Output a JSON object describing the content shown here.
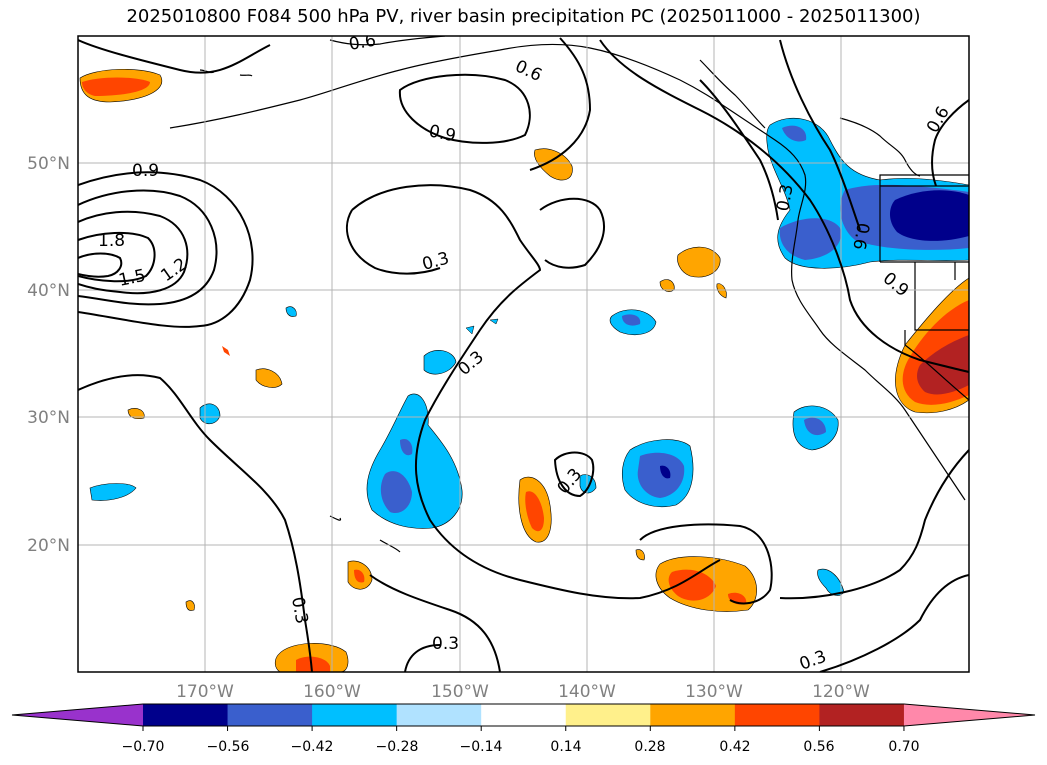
{
  "title": "2025010800 F084 500 hPa PV, river basin precipitation PC (2025011000 - 2025011300)",
  "map": {
    "lat_ticks": [
      "50°N",
      "40°N",
      "30°N",
      "20°N"
    ],
    "lon_ticks": [
      "170°W",
      "160°W",
      "150°W",
      "140°W",
      "130°W",
      "120°W"
    ],
    "lat_values": [
      50,
      40,
      30,
      20
    ],
    "lon_values": [
      -170,
      -160,
      -150,
      -140,
      -130,
      -120
    ],
    "lon_range": [
      -180,
      -110
    ],
    "lat_range": [
      10,
      60
    ],
    "grid": true,
    "contour_labels": [
      "0.6",
      "0.6",
      "0.9",
      "0.9",
      "1.8",
      "1.5",
      "1.2",
      "0.3",
      "0.3",
      "0.3",
      "0.3",
      "0.3",
      "0.3",
      "0.6",
      "0.9",
      "0.6",
      "0.3"
    ]
  },
  "colorbar": {
    "extend": "both",
    "labels": [
      "−0.70",
      "−0.56",
      "−0.42",
      "−0.28",
      "−0.14",
      "0.14",
      "0.28",
      "0.42",
      "0.56",
      "0.70"
    ],
    "colors": [
      "#9932cc",
      "#00008b",
      "#3a5fcd",
      "#00bfff",
      "#b0e2ff",
      "#ffffff",
      "#fff08b",
      "#ffa500",
      "#ff4500",
      "#b22222",
      "#ff88aa"
    ]
  }
}
